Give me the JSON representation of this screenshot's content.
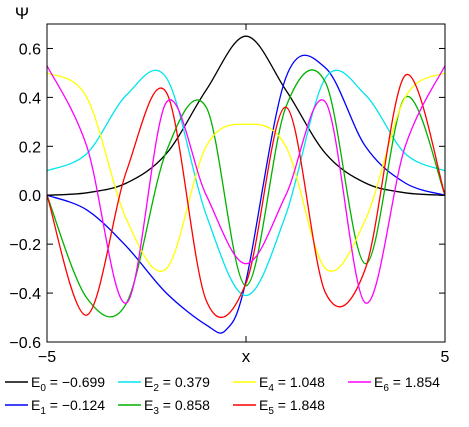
{
  "chart_data": {
    "type": "line",
    "title": "",
    "xlabel": "x",
    "ylabel": "Ψ",
    "xlim": [
      -5,
      5
    ],
    "ylim": [
      -0.6,
      0.7
    ],
    "x_ticks": [
      -5,
      0,
      5
    ],
    "x_tick_labels": [
      "−5",
      "",
      "5"
    ],
    "y_ticks": [
      0.6,
      0.4,
      0.2,
      0.0,
      -0.2,
      -0.4,
      -0.6
    ],
    "y_tick_labels": [
      "0.6",
      "0.4",
      "0.2",
      "0.0",
      "−0.2",
      "−0.4",
      "−0.6"
    ],
    "grid": false,
    "legend_position": "bottom",
    "series": [
      {
        "name": "E0",
        "energy": "−0.699",
        "color": "#000000",
        "n": 0,
        "sign": 1,
        "x": [
          -5,
          -4,
          -3,
          -2,
          -1,
          0,
          1,
          2,
          3,
          4,
          5
        ],
        "y": [
          0.0,
          0.01,
          0.05,
          0.17,
          0.43,
          0.65,
          0.43,
          0.17,
          0.05,
          0.01,
          0.0
        ]
      },
      {
        "name": "E1",
        "energy": "−0.124",
        "color": "#0000ff",
        "n": 1,
        "sign": 1,
        "x": [
          -5,
          -4,
          -3,
          -2,
          -1,
          -0.5,
          0,
          1,
          2,
          3,
          4,
          5
        ],
        "y": [
          0.0,
          -0.06,
          -0.21,
          -0.4,
          -0.53,
          -0.55,
          -0.35,
          0.48,
          0.52,
          0.2,
          0.05,
          0.0
        ]
      },
      {
        "name": "E2",
        "energy": "0.379",
        "color": "#00e5ee",
        "n": 2,
        "sign": 1,
        "x": [
          -5,
          -4,
          -3,
          -2,
          -1,
          0,
          1,
          2,
          3,
          4,
          5
        ],
        "y": [
          0.1,
          0.17,
          0.41,
          0.48,
          -0.08,
          -0.41,
          -0.08,
          0.48,
          0.41,
          0.17,
          0.1
        ]
      },
      {
        "name": "E3",
        "energy": "0.858",
        "color": "#00b200",
        "n": 3,
        "sign": 1,
        "x": [
          -5,
          -4,
          -3,
          -2,
          -1,
          0,
          1,
          2,
          3,
          4,
          5
        ],
        "y": [
          0.0,
          -0.42,
          -0.44,
          0.18,
          0.36,
          -0.37,
          0.36,
          0.46,
          -0.28,
          0.4,
          0.0
        ]
      },
      {
        "name": "E4",
        "energy": "1.048",
        "color": "#ffff00",
        "n": 4,
        "sign": 1,
        "x": [
          -5,
          -4,
          -3,
          -2,
          -1,
          0,
          1,
          2,
          3,
          4,
          5
        ],
        "y": [
          0.5,
          0.4,
          -0.1,
          -0.3,
          0.2,
          0.29,
          0.2,
          -0.3,
          -0.1,
          0.4,
          0.5
        ]
      },
      {
        "name": "E5",
        "energy": "1.848",
        "color": "#ff0000",
        "n": 5,
        "sign": 1,
        "x": [
          -5,
          -4,
          -3,
          -2,
          -1,
          0,
          1,
          2,
          3,
          4,
          5
        ],
        "y": [
          0.0,
          -0.49,
          0.1,
          0.42,
          -0.43,
          -0.36,
          0.36,
          -0.4,
          -0.3,
          0.49,
          0.0
        ]
      },
      {
        "name": "E6",
        "energy": "1.854",
        "color": "#ff00ff",
        "n": 6,
        "sign": 1,
        "x": [
          -5,
          -4,
          -3,
          -2,
          -1,
          0,
          1,
          2,
          3,
          4,
          5
        ],
        "y": [
          0.53,
          0.2,
          -0.44,
          0.38,
          0.0,
          -0.28,
          0.0,
          0.38,
          -0.44,
          0.2,
          0.53
        ]
      }
    ],
    "legend": [
      {
        "sym": "E",
        "sub": "0",
        "value": "−0.699",
        "color": "#000000"
      },
      {
        "sym": "E",
        "sub": "1",
        "value": "−0.124",
        "color": "#0000ff"
      },
      {
        "sym": "E",
        "sub": "2",
        "value": "0.379",
        "color": "#00e5ee"
      },
      {
        "sym": "E",
        "sub": "3",
        "value": "0.858",
        "color": "#00b200"
      },
      {
        "sym": "E",
        "sub": "4",
        "value": "1.048",
        "color": "#ffff00"
      },
      {
        "sym": "E",
        "sub": "5",
        "value": "1.848",
        "color": "#ff0000"
      },
      {
        "sym": "E",
        "sub": "6",
        "value": "1.854",
        "color": "#ff00ff"
      }
    ]
  }
}
